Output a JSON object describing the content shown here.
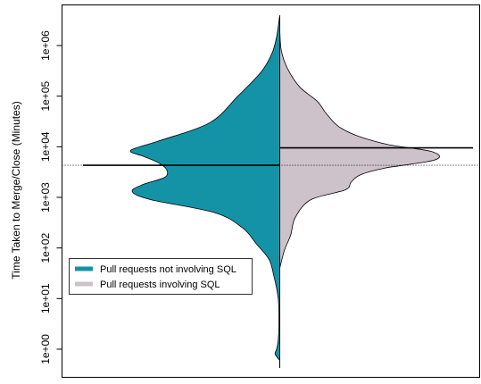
{
  "chart_data": {
    "type": "violin",
    "subtype": "split/bean plot",
    "ylabel": "Time Taken to Merge/Close (Minutes)",
    "y_scale": "log10",
    "ylim": [
      0.3,
      5000000
    ],
    "y_ticks": [
      1,
      10,
      100,
      1000,
      10000,
      100000,
      1000000
    ],
    "y_tick_labels": [
      "1e+00",
      "1e+01",
      "1e+02",
      "1e+03",
      "1e+04",
      "1e+05",
      "1e+06"
    ],
    "legend_position": "bottom-left",
    "reference_line": {
      "style": "dotted",
      "value": 4300
    },
    "series": [
      {
        "name": "Pull requests not involving SQL",
        "side": "left",
        "color": "#1593A6",
        "median": 4300,
        "density": [
          [
            0.6,
            0.0
          ],
          [
            0.8,
            0.03
          ],
          [
            1.0,
            0.02
          ],
          [
            1.5,
            0.01
          ],
          [
            3,
            0.005
          ],
          [
            10,
            0.01
          ],
          [
            30,
            0.04
          ],
          [
            60,
            0.07
          ],
          [
            120,
            0.15
          ],
          [
            250,
            0.24
          ],
          [
            500,
            0.42
          ],
          [
            900,
            0.83
          ],
          [
            1300,
            0.95
          ],
          [
            1800,
            0.88
          ],
          [
            2500,
            0.74
          ],
          [
            3600,
            0.73
          ],
          [
            5000,
            0.79
          ],
          [
            6500,
            0.88
          ],
          [
            8500,
            0.96
          ],
          [
            13000,
            0.78
          ],
          [
            30000,
            0.45
          ],
          [
            100000,
            0.27
          ],
          [
            300000,
            0.12
          ],
          [
            700000,
            0.05
          ],
          [
            1500000,
            0.02
          ],
          [
            4000000,
            0.0
          ]
        ]
      },
      {
        "name": "Pull requests involving SQL",
        "side": "right",
        "color": "#CDC1CA",
        "median": 9500,
        "density": [
          [
            40,
            0.0
          ],
          [
            90,
            0.03
          ],
          [
            180,
            0.07
          ],
          [
            400,
            0.1
          ],
          [
            900,
            0.2
          ],
          [
            1400,
            0.42
          ],
          [
            2000,
            0.46
          ],
          [
            2800,
            0.52
          ],
          [
            3800,
            0.68
          ],
          [
            5500,
            1.0
          ],
          [
            8000,
            0.98
          ],
          [
            11000,
            0.7
          ],
          [
            16000,
            0.51
          ],
          [
            25000,
            0.38
          ],
          [
            45000,
            0.3
          ],
          [
            80000,
            0.24
          ],
          [
            150000,
            0.13
          ],
          [
            350000,
            0.05
          ],
          [
            800000,
            0.01
          ],
          [
            2000000,
            0.0
          ]
        ]
      }
    ]
  }
}
